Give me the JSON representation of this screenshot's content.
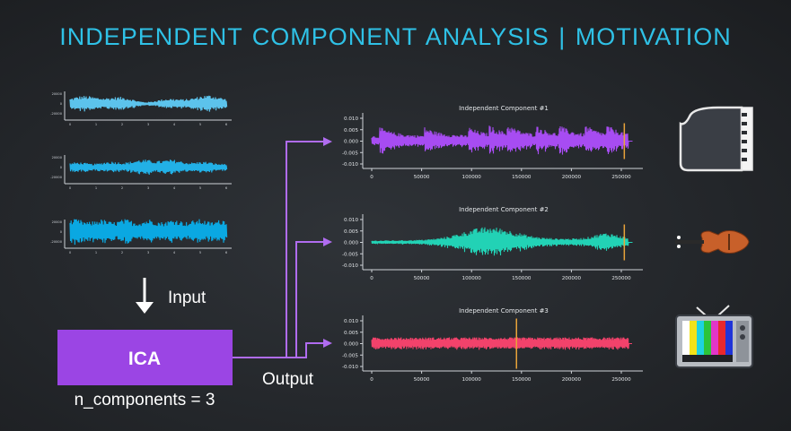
{
  "slide": {
    "title": "INDEPENDENT COMPONENT ANALYSIS | MOTIVATION"
  },
  "input_label": "Input",
  "output_label": "Output",
  "ica_block": {
    "label": "ICA",
    "param": "n_components = 3"
  },
  "colors": {
    "title": "#2fc1e6",
    "ica_box": "#9b45e4",
    "arrows": "#b06cf0",
    "mixed": [
      "#5cc3ec",
      "#22b0e6",
      "#0aa8e2"
    ],
    "components": [
      "#a74cf2",
      "#22d2b5",
      "#f2426b"
    ],
    "marker": "#e8a33a"
  },
  "mixed_signals": [
    {
      "name": "mixed-signal-1",
      "y_ticks": [
        "20000",
        "0",
        "-20000"
      ],
      "x_ticks": [
        "0",
        "1",
        "2",
        "3",
        "4",
        "5",
        "6"
      ]
    },
    {
      "name": "mixed-signal-2",
      "y_ticks": [
        "20000",
        "0",
        "-20000"
      ],
      "x_ticks": [
        "0",
        "1",
        "2",
        "3",
        "4",
        "5",
        "6"
      ]
    },
    {
      "name": "mixed-signal-3",
      "y_ticks": [
        "20000",
        "0",
        "-20000"
      ],
      "x_ticks": [
        "0",
        "1",
        "2",
        "3",
        "4",
        "5",
        "6"
      ]
    }
  ],
  "components": [
    {
      "title": "Independent Component #1",
      "icon": "piano-icon",
      "marker_at": 253000
    },
    {
      "title": "Independent Component #2",
      "icon": "violin-icon",
      "marker_at": 253000
    },
    {
      "title": "Independent Component #3",
      "icon": "tv-test-pattern-icon",
      "marker_at": 145000
    }
  ],
  "component_y_ticks": [
    "0.010",
    "0.005",
    "0.000",
    "-0.005",
    "-0.010"
  ],
  "component_x_ticks": [
    "0",
    "50000",
    "100000",
    "150000",
    "200000",
    "250000"
  ]
}
